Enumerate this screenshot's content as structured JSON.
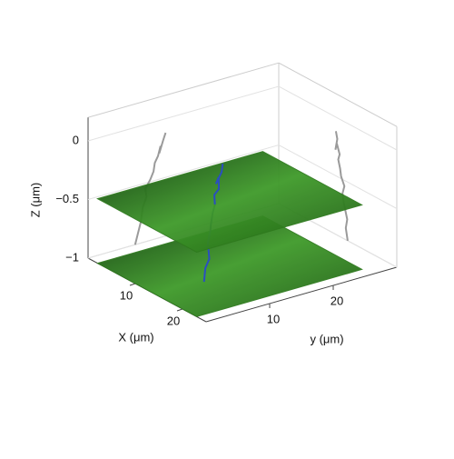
{
  "chart_data": {
    "type": "trajectory3d",
    "zlabel": "Z (μm)",
    "xlabel": "X (μm)",
    "ylabel": "y (μm)",
    "xlim": [
      0,
      25
    ],
    "ylim": [
      0,
      30
    ],
    "zlim": [
      -1,
      0.2
    ],
    "xticks": [
      10,
      20
    ],
    "yticks": [
      10,
      20
    ],
    "zticks": [
      {
        "value": -1,
        "label": "−1"
      },
      {
        "value": -0.5,
        "label": "−0.5"
      },
      0
    ],
    "planes": [
      -1,
      -0.45
    ],
    "plane_color": "#2f7a1e",
    "projection_color": "#9a9a9a",
    "grid": true,
    "series": [
      {
        "color": "#2a4fc0",
        "x": [
          14.6,
          14.2,
          14.5,
          13.8,
          13.5,
          13.9,
          13.2,
          13.0,
          12.6,
          12.9,
          12.3,
          12.0,
          12.4,
          12.1
        ],
        "y": [
          7.4,
          7.9,
          8.3,
          8.6,
          9.2,
          9.0,
          9.8,
          10.3,
          10.5,
          11.0,
          11.4,
          11.2,
          11.8,
          12.2
        ],
        "z": [
          -1,
          -0.9,
          -0.82,
          -0.7,
          -0.62,
          -0.55,
          -0.48,
          -0.42,
          -0.35,
          -0.3,
          -0.22,
          -0.28,
          -0.18,
          -0.12
        ]
      }
    ]
  }
}
